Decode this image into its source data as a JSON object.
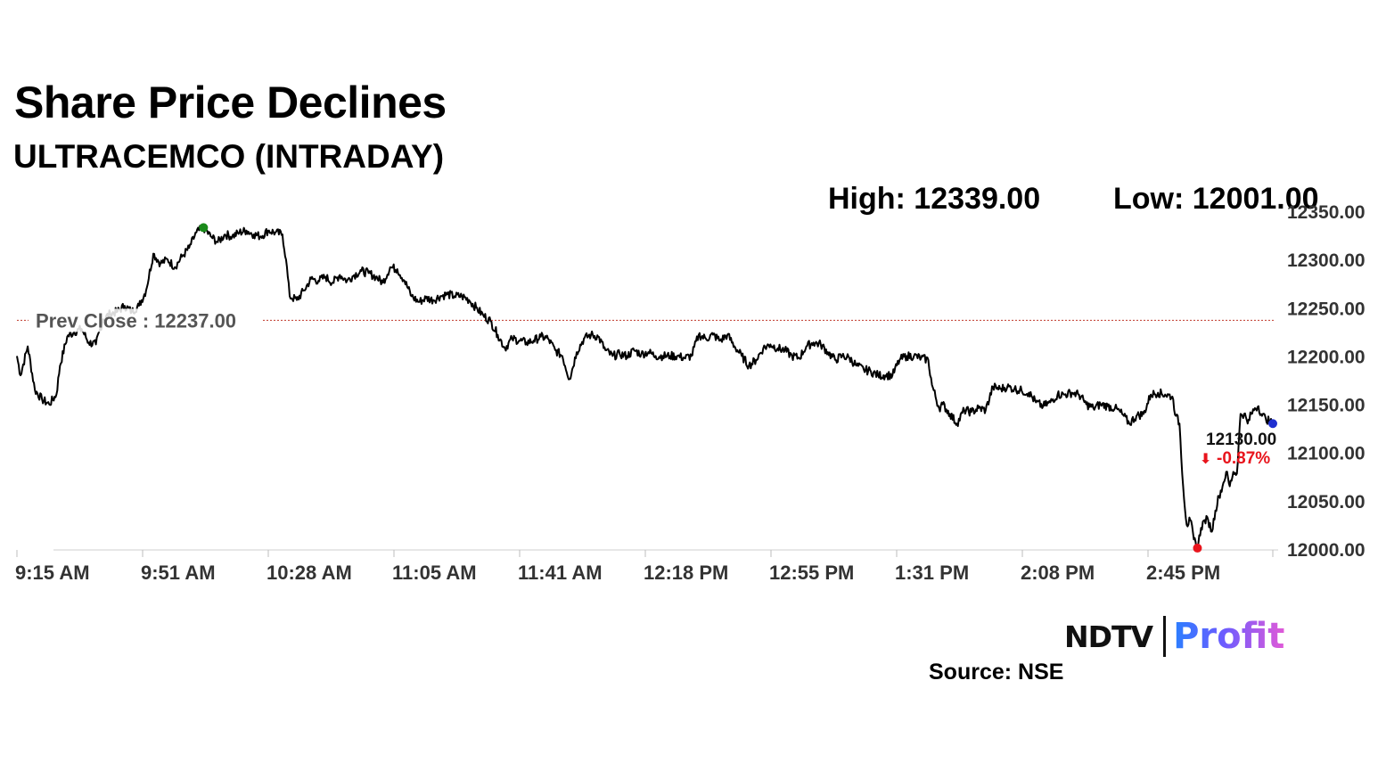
{
  "header": {
    "title": "Share Price Declines",
    "subtitle": "ULTRACEMCO (INTRADAY)",
    "high_text": "High: 12339.00",
    "low_text": "Low: 12001.00"
  },
  "footer": {
    "logo_left": "NDTV",
    "logo_right": "Profit",
    "source": "Source: NSE"
  },
  "chart_data": {
    "type": "line",
    "title": "Share Price Declines",
    "subtitle": "ULTRACEMCO (INTRADAY)",
    "xlabel": "",
    "ylabel": "",
    "ylim": [
      12000,
      12350
    ],
    "yticks": [
      12000,
      12050,
      12100,
      12150,
      12200,
      12250,
      12300,
      12350
    ],
    "ytick_labels": [
      "12000.00",
      "12050.00",
      "12100.00",
      "12150.00",
      "12200.00",
      "12250.00",
      "12300.00",
      "12350.00"
    ],
    "xtick_labels": [
      "9:15 AM",
      "9:51 AM",
      "10:28 AM",
      "11:05 AM",
      "11:41 AM",
      "12:18 PM",
      "12:55 PM",
      "1:31 PM",
      "2:08 PM",
      "2:45 PM"
    ],
    "grid": false,
    "prev_close": 12237.0,
    "prev_close_label": "Prev Close : 12237.00",
    "high": 12339.0,
    "low": 12001.0,
    "last_label": "12130.00",
    "change_label": "-0.87%",
    "change_arrow": "⬇",
    "colors": {
      "line": "#000000",
      "high_marker": "#1a8a1a",
      "low_marker": "#e8141c",
      "last_marker": "#1f2fd0",
      "prev_close_line": "#c0392b",
      "change_text": "#e8141c"
    },
    "series": [
      {
        "values": [
          [
            0,
            12200
          ],
          [
            1,
            12180
          ],
          [
            3,
            12210
          ],
          [
            5,
            12165
          ],
          [
            7,
            12155
          ],
          [
            9,
            12150
          ],
          [
            11,
            12160
          ],
          [
            12,
            12190
          ],
          [
            14,
            12220
          ],
          [
            16,
            12225
          ],
          [
            18,
            12228
          ],
          [
            20,
            12214
          ],
          [
            22,
            12212
          ],
          [
            24,
            12238
          ],
          [
            26,
            12244
          ],
          [
            28,
            12246
          ],
          [
            30,
            12252
          ],
          [
            32,
            12246
          ],
          [
            34,
            12252
          ],
          [
            36,
            12268
          ],
          [
            38,
            12306
          ],
          [
            40,
            12296
          ],
          [
            42,
            12300
          ],
          [
            44,
            12292
          ],
          [
            46,
            12303
          ],
          [
            48,
            12312
          ],
          [
            50,
            12328
          ],
          [
            52,
            12333
          ],
          [
            54,
            12324
          ],
          [
            56,
            12318
          ],
          [
            58,
            12326
          ],
          [
            60,
            12324
          ],
          [
            62,
            12328
          ],
          [
            64,
            12330
          ],
          [
            66,
            12326
          ],
          [
            68,
            12324
          ],
          [
            70,
            12330
          ],
          [
            72,
            12328
          ],
          [
            74,
            12326
          ],
          [
            75,
            12300
          ],
          [
            76,
            12262
          ],
          [
            78,
            12258
          ],
          [
            80,
            12268
          ],
          [
            82,
            12280
          ],
          [
            84,
            12278
          ],
          [
            86,
            12282
          ],
          [
            88,
            12276
          ],
          [
            90,
            12284
          ],
          [
            92,
            12278
          ],
          [
            94,
            12284
          ],
          [
            96,
            12288
          ],
          [
            98,
            12286
          ],
          [
            100,
            12282
          ],
          [
            102,
            12276
          ],
          [
            104,
            12292
          ],
          [
            106,
            12290
          ],
          [
            108,
            12278
          ],
          [
            110,
            12262
          ],
          [
            112,
            12256
          ],
          [
            114,
            12260
          ],
          [
            116,
            12258
          ],
          [
            118,
            12262
          ],
          [
            120,
            12264
          ],
          [
            122,
            12262
          ],
          [
            124,
            12262
          ],
          [
            126,
            12258
          ],
          [
            128,
            12250
          ],
          [
            130,
            12242
          ],
          [
            132,
            12236
          ],
          [
            134,
            12222
          ],
          [
            136,
            12208
          ],
          [
            138,
            12218
          ],
          [
            140,
            12216
          ],
          [
            142,
            12214
          ],
          [
            144,
            12216
          ],
          [
            146,
            12220
          ],
          [
            148,
            12218
          ],
          [
            150,
            12206
          ],
          [
            152,
            12200
          ],
          [
            154,
            12176
          ],
          [
            156,
            12204
          ],
          [
            158,
            12218
          ],
          [
            160,
            12222
          ],
          [
            162,
            12220
          ],
          [
            164,
            12206
          ],
          [
            166,
            12200
          ],
          [
            168,
            12202
          ],
          [
            170,
            12200
          ],
          [
            172,
            12206
          ],
          [
            174,
            12202
          ],
          [
            176,
            12204
          ],
          [
            178,
            12200
          ],
          [
            180,
            12200
          ],
          [
            182,
            12200
          ],
          [
            184,
            12200
          ],
          [
            186,
            12198
          ],
          [
            188,
            12200
          ],
          [
            190,
            12222
          ],
          [
            192,
            12218
          ],
          [
            194,
            12222
          ],
          [
            196,
            12216
          ],
          [
            198,
            12222
          ],
          [
            200,
            12210
          ],
          [
            202,
            12200
          ],
          [
            204,
            12190
          ],
          [
            206,
            12196
          ],
          [
            208,
            12208
          ],
          [
            210,
            12212
          ],
          [
            212,
            12208
          ],
          [
            214,
            12206
          ],
          [
            216,
            12200
          ],
          [
            218,
            12198
          ],
          [
            220,
            12210
          ],
          [
            222,
            12214
          ],
          [
            224,
            12212
          ],
          [
            226,
            12204
          ],
          [
            228,
            12196
          ],
          [
            230,
            12200
          ],
          [
            232,
            12198
          ],
          [
            234,
            12190
          ],
          [
            236,
            12186
          ],
          [
            238,
            12184
          ],
          [
            240,
            12180
          ],
          [
            242,
            12180
          ],
          [
            244,
            12180
          ],
          [
            246,
            12196
          ],
          [
            248,
            12200
          ],
          [
            250,
            12200
          ],
          [
            252,
            12198
          ],
          [
            254,
            12196
          ],
          [
            255,
            12170
          ],
          [
            257,
            12146
          ],
          [
            258,
            12150
          ],
          [
            260,
            12140
          ],
          [
            262,
            12130
          ],
          [
            264,
            12144
          ],
          [
            266,
            12142
          ],
          [
            268,
            12146
          ],
          [
            270,
            12144
          ],
          [
            272,
            12168
          ],
          [
            274,
            12166
          ],
          [
            276,
            12168
          ],
          [
            278,
            12166
          ],
          [
            280,
            12164
          ],
          [
            282,
            12162
          ],
          [
            284,
            12152
          ],
          [
            286,
            12148
          ],
          [
            288,
            12152
          ],
          [
            290,
            12160
          ],
          [
            292,
            12160
          ],
          [
            294,
            12162
          ],
          [
            296,
            12160
          ],
          [
            298,
            12150
          ],
          [
            300,
            12146
          ],
          [
            302,
            12150
          ],
          [
            304,
            12148
          ],
          [
            306,
            12146
          ],
          [
            308,
            12140
          ],
          [
            310,
            12130
          ],
          [
            312,
            12138
          ],
          [
            314,
            12140
          ],
          [
            316,
            12160
          ],
          [
            318,
            12162
          ],
          [
            320,
            12160
          ],
          [
            322,
            12158
          ],
          [
            323,
            12138
          ],
          [
            324,
            12130
          ],
          [
            325,
            12065
          ],
          [
            326,
            12025
          ],
          [
            327,
            12030
          ],
          [
            328,
            12010
          ],
          [
            329,
            12001
          ],
          [
            330,
            12022
          ],
          [
            331,
            12030
          ],
          [
            332,
            12030
          ],
          [
            333,
            12018
          ],
          [
            334,
            12040
          ],
          [
            335,
            12055
          ],
          [
            336,
            12065
          ],
          [
            337,
            12080
          ],
          [
            338,
            12065
          ],
          [
            339,
            12080
          ],
          [
            340,
            12078
          ],
          [
            341,
            12140
          ],
          [
            342,
            12140
          ],
          [
            343,
            12130
          ],
          [
            344,
            12140
          ],
          [
            345,
            12146
          ],
          [
            346,
            12148
          ],
          [
            347,
            12138
          ],
          [
            348,
            12136
          ],
          [
            349,
            12132
          ],
          [
            350,
            12130
          ]
        ]
      }
    ]
  }
}
